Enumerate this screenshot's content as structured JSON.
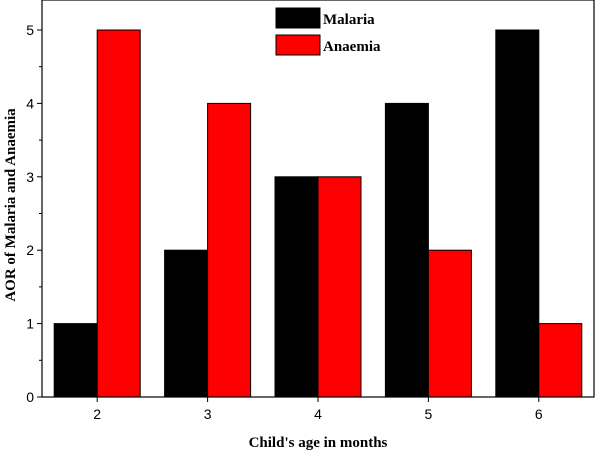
{
  "chart_data": {
    "type": "bar",
    "title": "",
    "xlabel": "Child's age in months",
    "ylabel": "AOR of Malaria and Anaemia",
    "categories": [
      "2",
      "3",
      "4",
      "5",
      "6"
    ],
    "ylim": [
      0,
      5.4
    ],
    "yticks": [
      "0",
      "1",
      "2",
      "3",
      "4",
      "5"
    ],
    "legend_position": "top-center",
    "grid": false,
    "series": [
      {
        "name": "Malaria",
        "color": "#000000",
        "values": [
          1,
          2,
          3,
          4,
          5
        ]
      },
      {
        "name": "Anaemia",
        "color": "#ff0000",
        "values": [
          5,
          4,
          3,
          2,
          1
        ]
      }
    ]
  }
}
